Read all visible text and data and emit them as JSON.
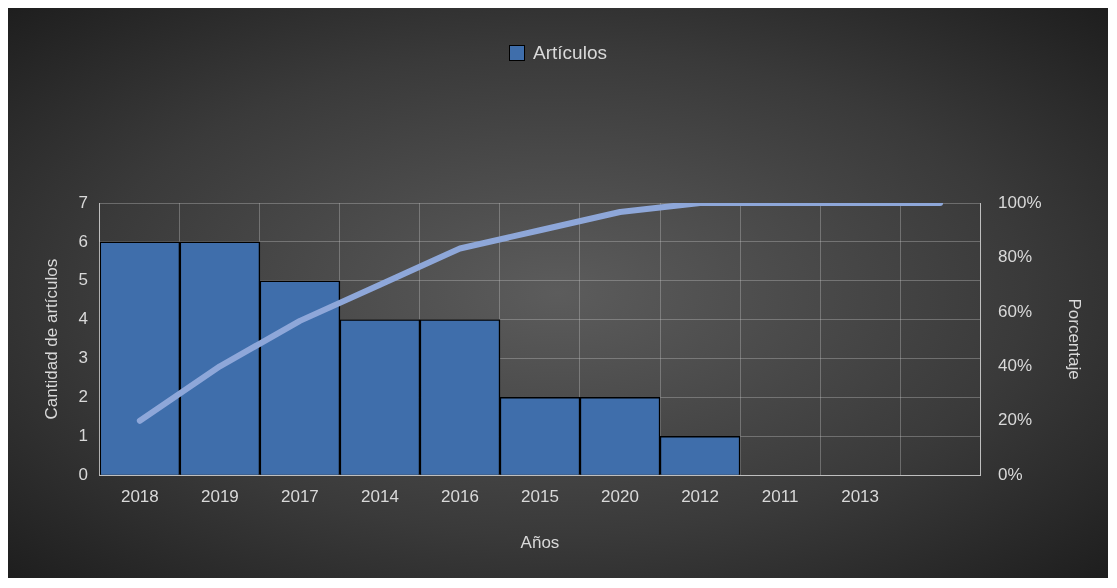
{
  "chart_data": {
    "type": "bar",
    "xlabel": "Años",
    "ylabel": "Cantidad de artículos",
    "y2label": "Porcentaje",
    "categories": [
      "2018",
      "2019",
      "2017",
      "2014",
      "2016",
      "2015",
      "2020",
      "2012",
      "2011",
      "2013",
      null
    ],
    "series": [
      {
        "name": "Artículos",
        "color": "#3f6eab",
        "values": [
          6,
          6,
          5,
          4,
          4,
          2,
          2,
          1,
          0,
          0,
          0
        ]
      },
      {
        "type": "line",
        "axis": "y2",
        "color": "#8ea7d9",
        "values": [
          20,
          40,
          56.7,
          70,
          83.3,
          90,
          96.7,
          100,
          100,
          100,
          100
        ]
      }
    ],
    "ylim": [
      0,
      7
    ],
    "yticks": [
      0,
      1,
      2,
      3,
      4,
      5,
      6,
      7
    ],
    "y2lim": [
      0,
      100
    ],
    "y2ticks": [
      {
        "value": 0,
        "label": "0%"
      },
      {
        "value": 20,
        "label": "20%"
      },
      {
        "value": 40,
        "label": "40%"
      },
      {
        "value": 60,
        "label": "60%"
      },
      {
        "value": 80,
        "label": "80%"
      },
      {
        "value": 100,
        "label": "100%"
      }
    ],
    "grid": true,
    "legend": "top",
    "marker": "none"
  }
}
